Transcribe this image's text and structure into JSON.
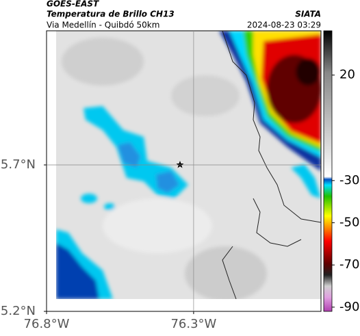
{
  "header": {
    "title": "GOES-EAST",
    "subtitle": "Temperatura de Brillo CH13",
    "source": "SIATA",
    "location": "Via Medellín - Quibdó 50km",
    "datetime": "2024-08-23 03:29"
  },
  "map": {
    "lonlim": [
      -76.8,
      -75.867
    ],
    "latlim": [
      5.2,
      6.158
    ],
    "xticks": [
      {
        "value": -76.8,
        "label": "76.8°W"
      },
      {
        "value": -76.3,
        "label": "76.3°W"
      }
    ],
    "yticks": [
      {
        "value": 5.7,
        "label": "5.7°N"
      },
      {
        "value": 5.2,
        "label": "5.2°N"
      }
    ],
    "grid": true
  },
  "colorbar": {
    "lim": [
      -92,
      41
    ],
    "ticks": [
      20,
      -30,
      -50,
      -70,
      -90
    ]
  }
}
